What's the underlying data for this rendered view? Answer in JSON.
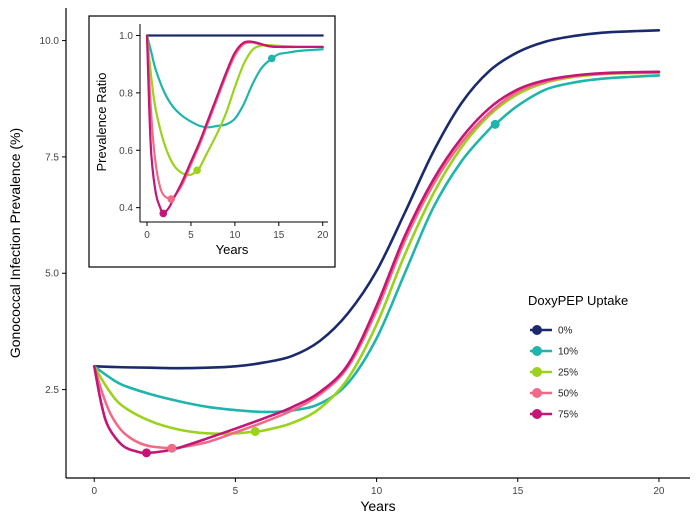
{
  "chart_data": [
    {
      "id": "main",
      "type": "line",
      "xlabel": "Years",
      "ylabel": "Gonococcal Infection Prevalence (%)",
      "xlim": [
        -1,
        21.1
      ],
      "ylim": [
        0.6,
        10.7
      ],
      "xticks": [
        0,
        5,
        10,
        15,
        20
      ],
      "xtick_labels": [
        "0",
        "5",
        "10",
        "15",
        "20"
      ],
      "yticks": [
        2.5,
        5.0,
        7.5,
        10.0
      ],
      "ytick_labels": [
        "2.5",
        "5.0",
        "7.5",
        "10.0"
      ],
      "legend": {
        "title": "DoxyPEP Uptake",
        "placement": "right",
        "entries": [
          "0%",
          "10%",
          "25%",
          "50%",
          "75%"
        ]
      },
      "series": [
        {
          "name": "0%",
          "color": "#1a2a6c",
          "x": [
            0,
            1,
            2,
            3,
            4,
            5,
            6,
            7,
            8,
            9,
            10,
            11,
            12,
            13,
            14,
            15,
            16,
            17,
            18,
            19,
            20
          ],
          "y": [
            3.0,
            2.98,
            2.97,
            2.96,
            2.97,
            3.0,
            3.08,
            3.22,
            3.55,
            4.15,
            5.05,
            6.3,
            7.6,
            8.65,
            9.35,
            9.75,
            9.98,
            10.1,
            10.17,
            10.2,
            10.22
          ]
        },
        {
          "name": "10%",
          "color": "#1fb5ad",
          "x": [
            0,
            0.5,
            1,
            2,
            3,
            4,
            5,
            6,
            7,
            8,
            9,
            10,
            11,
            12,
            13,
            14,
            14.2,
            15,
            16,
            17,
            18,
            19,
            20
          ],
          "y": [
            3.0,
            2.78,
            2.6,
            2.4,
            2.25,
            2.13,
            2.06,
            2.02,
            2.05,
            2.2,
            2.65,
            3.6,
            5.0,
            6.4,
            7.4,
            8.1,
            8.2,
            8.6,
            8.95,
            9.1,
            9.18,
            9.22,
            9.25
          ]
        },
        {
          "name": "25%",
          "color": "#9ad21c",
          "x": [
            0,
            0.5,
            1,
            2,
            3,
            4,
            5,
            5.7,
            6,
            7,
            8,
            9,
            10,
            11,
            12,
            13,
            14,
            15,
            16,
            17,
            18,
            19,
            20
          ],
          "y": [
            3.0,
            2.5,
            2.15,
            1.82,
            1.64,
            1.56,
            1.56,
            1.6,
            1.62,
            1.78,
            2.1,
            2.75,
            3.9,
            5.4,
            6.7,
            7.7,
            8.4,
            8.85,
            9.1,
            9.22,
            9.28,
            9.3,
            9.31
          ]
        },
        {
          "name": "50%",
          "color": "#f26b86",
          "x": [
            0,
            0.3,
            0.6,
            1,
            1.5,
            2,
            2.75,
            3,
            4,
            5,
            6,
            7,
            8,
            9,
            10,
            11,
            12,
            13,
            14,
            15,
            16,
            17,
            18,
            19,
            20
          ],
          "y": [
            3.0,
            2.4,
            1.95,
            1.6,
            1.38,
            1.28,
            1.24,
            1.25,
            1.37,
            1.58,
            1.8,
            2.05,
            2.4,
            3.0,
            4.2,
            5.7,
            6.9,
            7.8,
            8.45,
            8.9,
            9.12,
            9.24,
            9.29,
            9.31,
            9.32
          ]
        },
        {
          "name": "75%",
          "color": "#c41677",
          "x": [
            0,
            0.25,
            0.5,
            1,
            1.5,
            1.85,
            2.5,
            3,
            4,
            5,
            6,
            7,
            8,
            9,
            10,
            11,
            12,
            13,
            14,
            15,
            16,
            17,
            18,
            19,
            20
          ],
          "y": [
            3.0,
            2.2,
            1.7,
            1.3,
            1.17,
            1.14,
            1.18,
            1.25,
            1.45,
            1.66,
            1.88,
            2.12,
            2.45,
            3.05,
            4.3,
            5.8,
            7.0,
            7.9,
            8.55,
            8.95,
            9.15,
            9.25,
            9.3,
            9.32,
            9.33
          ]
        }
      ],
      "markers": [
        {
          "series": "10%",
          "x": 14.2,
          "y": 8.2
        },
        {
          "series": "25%",
          "x": 5.7,
          "y": 1.6
        },
        {
          "series": "50%",
          "x": 2.75,
          "y": 1.24
        },
        {
          "series": "75%",
          "x": 1.85,
          "y": 1.14
        }
      ]
    },
    {
      "id": "inset",
      "type": "line",
      "xlabel": "Years",
      "ylabel": "Prevalence Ratio",
      "xlim": [
        -0.8,
        20.6
      ],
      "ylim": [
        0.35,
        1.04
      ],
      "xticks": [
        0,
        5,
        10,
        15,
        20
      ],
      "xtick_labels": [
        "0",
        "5",
        "10",
        "15",
        "20"
      ],
      "yticks": [
        0.4,
        0.6,
        0.8,
        1.0
      ],
      "ytick_labels": [
        "0.4",
        "0.6",
        "0.8",
        "1.0"
      ],
      "series": [
        {
          "name": "0%",
          "color": "#1a2a6c",
          "x": [
            0,
            20
          ],
          "y": [
            1.0,
            1.0
          ]
        },
        {
          "name": "10%",
          "color": "#1fb5ad",
          "x": [
            0,
            0.5,
            1,
            2,
            3,
            4,
            5,
            6,
            7,
            8,
            9,
            10,
            11,
            12,
            13,
            14,
            14.2,
            15,
            16,
            17,
            18,
            19,
            20
          ],
          "y": [
            1.0,
            0.94,
            0.88,
            0.8,
            0.75,
            0.72,
            0.7,
            0.685,
            0.68,
            0.685,
            0.69,
            0.71,
            0.76,
            0.83,
            0.885,
            0.915,
            0.92,
            0.935,
            0.94,
            0.945,
            0.948,
            0.95,
            0.952
          ]
        },
        {
          "name": "25%",
          "color": "#9ad21c",
          "x": [
            0,
            0.5,
            1,
            2,
            3,
            4,
            5,
            5.7,
            6,
            7,
            8,
            9,
            10,
            11,
            12,
            13,
            14,
            15,
            16,
            17,
            18,
            19,
            20
          ],
          "y": [
            1.0,
            0.85,
            0.74,
            0.62,
            0.55,
            0.52,
            0.515,
            0.53,
            0.54,
            0.6,
            0.66,
            0.73,
            0.82,
            0.9,
            0.95,
            0.965,
            0.966,
            0.964,
            0.962,
            0.961,
            0.961,
            0.961,
            0.961
          ]
        },
        {
          "name": "50%",
          "color": "#f26b86",
          "x": [
            0,
            0.3,
            0.6,
            1,
            1.5,
            2,
            2.75,
            3,
            4,
            5,
            6,
            7,
            8,
            9,
            10,
            11,
            12,
            13,
            14,
            15,
            16,
            17,
            18,
            19,
            20
          ],
          "y": [
            1.0,
            0.82,
            0.67,
            0.55,
            0.47,
            0.44,
            0.43,
            0.435,
            0.48,
            0.55,
            0.62,
            0.7,
            0.78,
            0.86,
            0.93,
            0.97,
            0.975,
            0.968,
            0.962,
            0.961,
            0.96,
            0.96,
            0.96,
            0.96,
            0.96
          ]
        },
        {
          "name": "75%",
          "color": "#c41677",
          "x": [
            0,
            0.25,
            0.5,
            1,
            1.5,
            1.85,
            2.5,
            3,
            4,
            5,
            6,
            7,
            8,
            9,
            10,
            11,
            12,
            13,
            14,
            15,
            16,
            17,
            18,
            19,
            20
          ],
          "y": [
            1.0,
            0.75,
            0.58,
            0.45,
            0.4,
            0.38,
            0.4,
            0.43,
            0.49,
            0.56,
            0.63,
            0.71,
            0.79,
            0.87,
            0.94,
            0.975,
            0.978,
            0.97,
            0.962,
            0.96,
            0.96,
            0.96,
            0.96,
            0.96,
            0.96
          ]
        }
      ],
      "markers": [
        {
          "series": "10%",
          "x": 14.2,
          "y": 0.92
        },
        {
          "series": "25%",
          "x": 5.7,
          "y": 0.53
        },
        {
          "series": "50%",
          "x": 2.75,
          "y": 0.43
        },
        {
          "series": "75%",
          "x": 1.85,
          "y": 0.38
        }
      ]
    }
  ]
}
